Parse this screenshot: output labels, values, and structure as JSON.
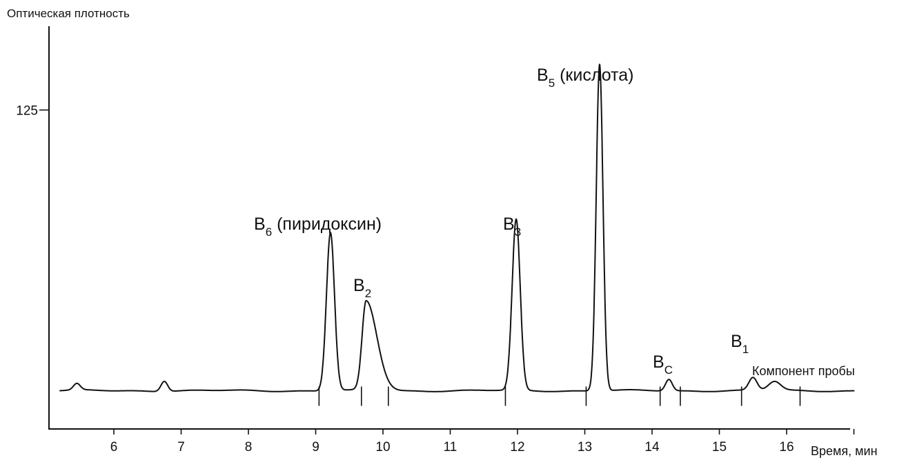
{
  "chart_data": {
    "type": "line",
    "title": "Оптическая плотность",
    "xlabel": "Время, мин",
    "ylabel": "Оптическая плотность",
    "xlim": [
      5,
      17
    ],
    "ylim": [
      0,
      150
    ],
    "x_ticks": [
      6,
      7,
      8,
      9,
      10,
      11,
      12,
      13,
      14,
      15,
      16,
      17
    ],
    "x_tick_labels": [
      "6",
      "7",
      "8",
      "9",
      "10",
      "11",
      "12",
      "13",
      "14",
      "15",
      "16"
    ],
    "y_ticks": [
      125
    ],
    "y_tick_labels": [
      "125"
    ],
    "baseline": 15,
    "grid": false,
    "peaks": [
      {
        "x": 5.45,
        "height": 2.5,
        "width": 0.05,
        "label": ""
      },
      {
        "x": 6.75,
        "height": 4.0,
        "width": 0.05,
        "label": ""
      },
      {
        "x": 9.22,
        "height": 62,
        "width": 0.06,
        "label": "B6 (пиридоксин)",
        "base": "B",
        "sub": "6",
        "suffix": " (пиридоксин)"
      },
      {
        "x": 9.75,
        "height": 35,
        "width": 0.06,
        "tail": 0.16,
        "label": "B2",
        "base": "B",
        "sub": "2",
        "suffix": ""
      },
      {
        "x": 11.98,
        "height": 67,
        "width": 0.06,
        "label": "B3",
        "base": "B",
        "sub": "3",
        "suffix": ""
      },
      {
        "x": 13.22,
        "height": 128,
        "width": 0.05,
        "label": "B5 (кислота)",
        "base": "B",
        "sub": "5",
        "suffix": " (кислота)"
      },
      {
        "x": 14.25,
        "height": 4.5,
        "width": 0.05,
        "label": "BC",
        "base": "B",
        "sub": "C",
        "suffix": ""
      },
      {
        "x": 15.5,
        "height": 5.0,
        "width": 0.06,
        "label": "B1",
        "base": "B",
        "sub": "1",
        "suffix": ""
      },
      {
        "x": 15.82,
        "height": 3.5,
        "width": 0.09,
        "label": "Компонент пробы"
      }
    ],
    "injection_markers": [
      9.05,
      9.68,
      10.08,
      11.82,
      13.02,
      14.12,
      14.42,
      15.33,
      16.2
    ]
  },
  "colors": {
    "trace": "#111111",
    "background": "#ffffff"
  }
}
